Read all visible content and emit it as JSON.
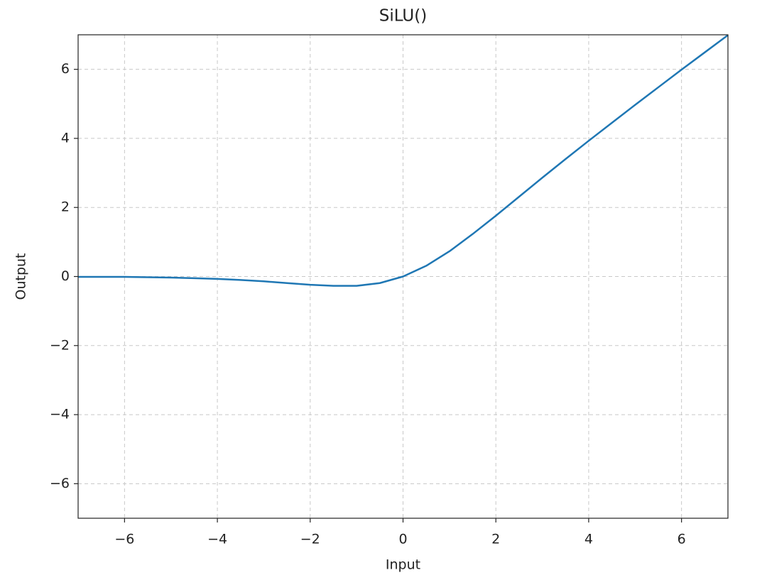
{
  "chart_data": {
    "type": "line",
    "title": "SiLU()",
    "x_label": "Input",
    "y_label": "Output",
    "x": [
      -7,
      -6.5,
      -6,
      -5.5,
      -5,
      -4.5,
      -4,
      -3.5,
      -3,
      -2.5,
      -2,
      -1.5,
      -1,
      -0.5,
      0,
      0.5,
      1,
      1.5,
      2,
      2.5,
      3,
      3.5,
      4,
      4.5,
      5,
      5.5,
      6,
      6.5,
      7
    ],
    "values": [
      -0.01,
      -0.01,
      -0.01,
      -0.02,
      -0.03,
      -0.05,
      -0.07,
      -0.1,
      -0.14,
      -0.19,
      -0.24,
      -0.27,
      -0.27,
      -0.19,
      0,
      0.31,
      0.73,
      1.23,
      1.76,
      2.31,
      2.86,
      3.4,
      3.93,
      4.45,
      4.97,
      5.48,
      5.99,
      6.49,
      6.99
    ],
    "color": "#1f77b4",
    "xlim": [
      -7,
      7
    ],
    "ylim": [
      -7,
      7
    ],
    "xticks": [
      {
        "value": -6,
        "label": "−6"
      },
      {
        "value": -4,
        "label": "−4"
      },
      {
        "value": -2,
        "label": "−2"
      },
      0,
      2,
      4,
      6
    ],
    "yticks": [
      {
        "value": -6,
        "label": "−6"
      },
      {
        "value": -4,
        "label": "−4"
      },
      {
        "value": -2,
        "label": "−2"
      },
      0,
      2,
      4,
      6
    ],
    "grid": true
  }
}
